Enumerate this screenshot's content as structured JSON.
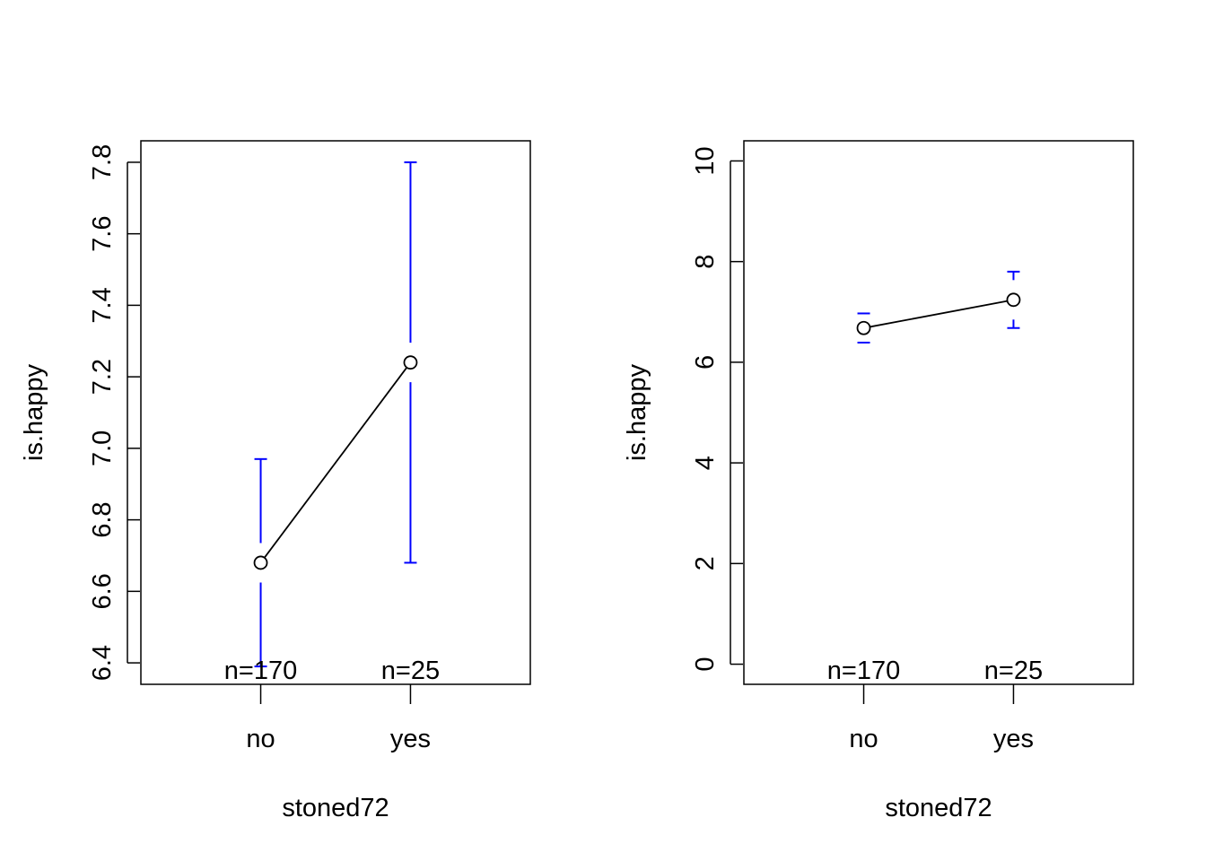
{
  "chart_data": [
    {
      "type": "line",
      "xlabel": "stoned72",
      "ylabel": "is.happy",
      "categories": [
        "no",
        "yes"
      ],
      "y_ticks": [
        "6.4",
        "6.6",
        "6.8",
        "7.0",
        "7.2",
        "7.4",
        "7.6",
        "7.8"
      ],
      "ylim": [
        6.34,
        7.86
      ],
      "series": [
        {
          "values": [
            6.68,
            7.24
          ],
          "ci_lower": [
            6.39,
            6.68
          ],
          "ci_upper": [
            6.97,
            7.8
          ],
          "n_labels": [
            "n=170",
            "n=25"
          ]
        }
      ],
      "colors": {
        "line": "#000000",
        "error_bars": "#0000ff"
      },
      "grid": false,
      "legend": "none"
    },
    {
      "type": "line",
      "xlabel": "stoned72",
      "ylabel": "is.happy",
      "categories": [
        "no",
        "yes"
      ],
      "y_ticks": [
        "0",
        "2",
        "4",
        "6",
        "8",
        "10"
      ],
      "ylim": [
        -0.4,
        10.4
      ],
      "series": [
        {
          "values": [
            6.68,
            7.24
          ],
          "ci_lower": [
            6.39,
            6.68
          ],
          "ci_upper": [
            6.97,
            7.8
          ],
          "n_labels": [
            "n=170",
            "n=25"
          ]
        }
      ],
      "colors": {
        "line": "#000000",
        "error_bars": "#0000ff"
      },
      "grid": false,
      "legend": "none"
    }
  ]
}
